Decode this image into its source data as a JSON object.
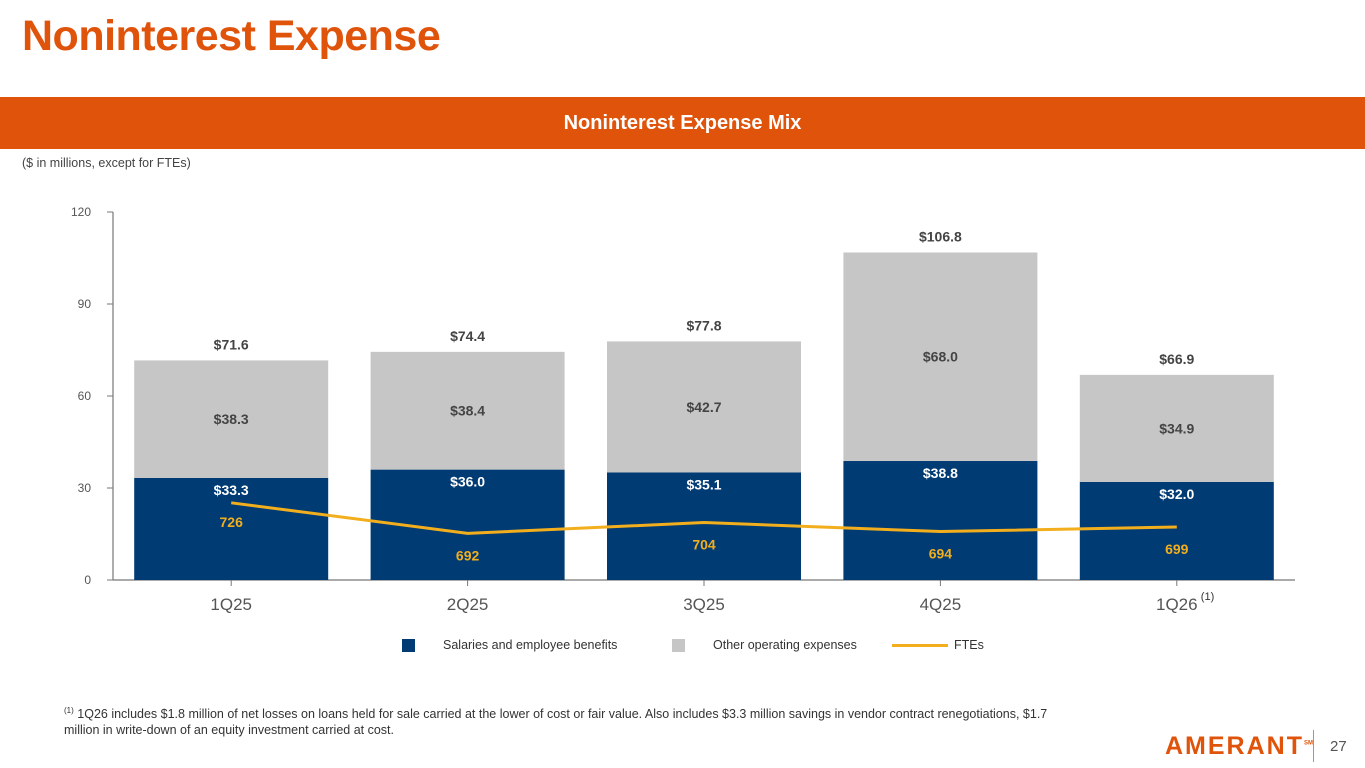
{
  "header": {
    "title": "Noninterest Expense",
    "banner": "Noninterest Expense Mix",
    "units_note": "($ in millions, except for FTEs)"
  },
  "colors": {
    "brand_orange": "#E0530B",
    "salaries": "#003B73",
    "other": "#C6C6C6",
    "ftes": "#F2AE1C"
  },
  "chart_data": {
    "type": "bar",
    "stacked": true,
    "title": "Noninterest Expense Mix",
    "xlabel": "",
    "ylabel": "",
    "ylim": [
      0,
      120
    ],
    "yticks": [
      0,
      30,
      60,
      90,
      120
    ],
    "grid": false,
    "categories": [
      "1Q25",
      "2Q25",
      "3Q25",
      "4Q25",
      "1Q26"
    ],
    "category_footnote_marks": [
      "",
      "",
      "",
      "",
      "(1)"
    ],
    "series": [
      {
        "name": "Salaries and employee benefits",
        "type": "bar",
        "values": [
          33.3,
          36.0,
          35.1,
          38.8,
          32.0
        ],
        "labels": [
          "$33.3",
          "$36.0",
          "$35.1",
          "$38.8",
          "$32.0"
        ]
      },
      {
        "name": "Other operating expenses",
        "type": "bar",
        "values": [
          38.3,
          38.4,
          42.7,
          68.0,
          34.9
        ],
        "labels": [
          "$38.3",
          "$38.4",
          "$42.7",
          "$68.0",
          "$34.9"
        ]
      },
      {
        "name": "FTEs",
        "type": "line",
        "values": [
          726,
          692,
          704,
          694,
          699
        ],
        "labels": [
          "726",
          "692",
          "704",
          "694",
          "699"
        ]
      }
    ],
    "totals": [
      71.6,
      74.4,
      77.8,
      106.8,
      66.9
    ],
    "total_labels": [
      "$71.6",
      "$74.4",
      "$77.8",
      "$106.8",
      "$66.9"
    ],
    "legend_position": "bottom"
  },
  "legend": [
    {
      "label": "Salaries and employee benefits"
    },
    {
      "label": "Other operating expenses"
    },
    {
      "label": "FTEs"
    }
  ],
  "footnote": {
    "mark": "(1)",
    "text": "1Q26 includes $1.8 million of net losses on loans held for sale carried at the lower of cost or fair value. Also includes $3.3 million savings in vendor contract renegotiations, $1.7 million in write-down of an equity investment carried at cost."
  },
  "footer": {
    "logo": "AMERANT",
    "logo_mark": "SM",
    "page_number": "27"
  }
}
